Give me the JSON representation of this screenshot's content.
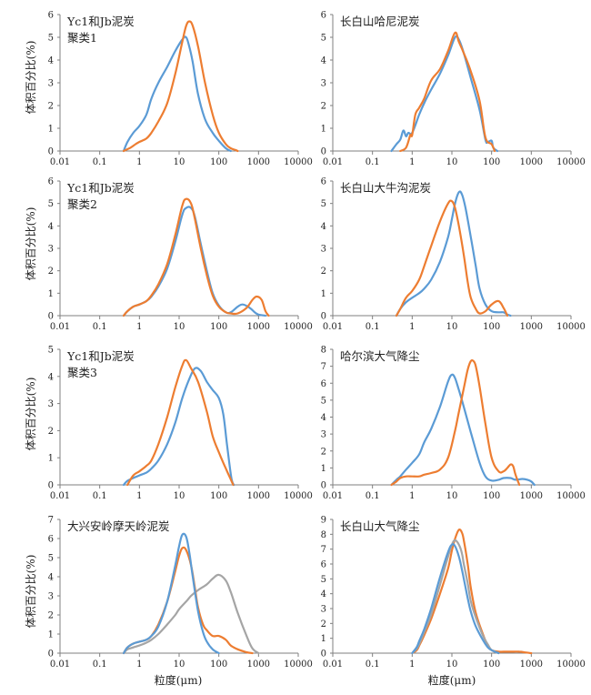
{
  "y_axis_label": "体积百分比(%)",
  "x_axis_label": "粒度(μm)",
  "colors": {
    "blue": "#5b9bd5",
    "orange": "#ed7d31",
    "gray": "#a5a5a5",
    "axis": "#7f7f7f"
  },
  "chart_data": [
    {
      "type": "line",
      "title": [
        "Yc1和Jb泥炭",
        "聚类1"
      ],
      "x_scale": "log",
      "x_ticks": [
        "0.01",
        "0.1",
        "1",
        "10",
        "100",
        "1000",
        "10000"
      ],
      "y_ticks": [
        "0",
        "1",
        "2",
        "3",
        "4",
        "5",
        "6"
      ],
      "xlim": [
        0.01,
        10000
      ],
      "ylim": [
        0,
        6
      ],
      "series": [
        {
          "color": "blue",
          "x": [
            0.4,
            0.5,
            0.7,
            1,
            1.5,
            2,
            3,
            5,
            8,
            12,
            15,
            18,
            22,
            30,
            45,
            70,
            100,
            150,
            200
          ],
          "y": [
            0,
            0.4,
            0.8,
            1.1,
            1.6,
            2.3,
            3.0,
            3.7,
            4.4,
            4.9,
            5.0,
            4.6,
            3.9,
            2.5,
            1.4,
            0.8,
            0.45,
            0.12,
            0
          ]
        },
        {
          "color": "orange",
          "x": [
            0.4,
            0.6,
            0.8,
            1,
            1.5,
            2,
            3,
            5,
            8,
            12,
            15,
            18,
            22,
            30,
            45,
            70,
            100,
            150,
            200,
            260,
            300
          ],
          "y": [
            0,
            0.15,
            0.3,
            0.4,
            0.55,
            0.8,
            1.3,
            2.1,
            3.4,
            4.8,
            5.5,
            5.7,
            5.5,
            4.6,
            3.0,
            1.6,
            0.8,
            0.3,
            0.12,
            0.05,
            0
          ]
        }
      ]
    },
    {
      "type": "line",
      "title": [
        "长白山哈尼泥炭"
      ],
      "x_scale": "log",
      "x_ticks": [
        "0.01",
        "0.1",
        "1",
        "10",
        "100",
        "1000",
        "10000"
      ],
      "y_ticks": [
        "0",
        "1",
        "2",
        "3",
        "4",
        "5",
        "6"
      ],
      "xlim": [
        0.01,
        10000
      ],
      "ylim": [
        0,
        6
      ],
      "series": [
        {
          "color": "blue",
          "x": [
            0.3,
            0.4,
            0.5,
            0.6,
            0.7,
            0.8,
            1,
            1.5,
            2,
            3,
            5,
            8,
            12,
            15,
            20,
            30,
            50,
            70,
            80,
            100,
            110,
            140
          ],
          "y": [
            0,
            0.3,
            0.5,
            0.9,
            0.65,
            0.8,
            0.8,
            1.6,
            2.1,
            2.7,
            3.4,
            4.2,
            5.0,
            4.9,
            4.3,
            3.2,
            1.8,
            0.5,
            0.4,
            0.45,
            0.15,
            0
          ]
        },
        {
          "color": "orange",
          "x": [
            0.5,
            0.7,
            0.9,
            1,
            1.2,
            1.5,
            2,
            3,
            5,
            8,
            12,
            15,
            20,
            30,
            50,
            70,
            100,
            120
          ],
          "y": [
            0,
            0.15,
            0.7,
            0.7,
            1.6,
            1.9,
            2.3,
            3.1,
            3.6,
            4.4,
            5.2,
            4.8,
            4.3,
            3.5,
            2.2,
            0.6,
            0.3,
            0
          ]
        }
      ]
    },
    {
      "type": "line",
      "title": [
        "Yc1和Jb泥炭",
        "聚类2"
      ],
      "x_scale": "log",
      "x_ticks": [
        "0.01",
        "0.1",
        "1",
        "10",
        "100",
        "1000",
        "10000"
      ],
      "y_ticks": [
        "0",
        "1",
        "2",
        "3",
        "4",
        "5",
        "6"
      ],
      "xlim": [
        0.01,
        10000
      ],
      "ylim": [
        0,
        6
      ],
      "series": [
        {
          "color": "blue",
          "x": [
            0.4,
            0.5,
            0.7,
            1,
            1.5,
            2,
            3,
            5,
            8,
            12,
            15,
            20,
            25,
            35,
            50,
            70,
            100,
            150,
            200,
            300,
            400,
            600,
            800,
            1000,
            1500
          ],
          "y": [
            0,
            0.2,
            0.4,
            0.5,
            0.65,
            0.85,
            1.3,
            2.1,
            3.3,
            4.5,
            4.8,
            4.8,
            4.4,
            3.2,
            2.0,
            1.0,
            0.45,
            0.15,
            0.15,
            0.4,
            0.5,
            0.35,
            0.15,
            0.05,
            0
          ]
        },
        {
          "color": "orange",
          "x": [
            0.4,
            0.5,
            0.7,
            1,
            1.5,
            2,
            3,
            5,
            8,
            12,
            15,
            20,
            25,
            35,
            50,
            70,
            100,
            150,
            200,
            300,
            500,
            700,
            900,
            1200,
            1500,
            1800
          ],
          "y": [
            0,
            0.2,
            0.4,
            0.5,
            0.65,
            0.9,
            1.4,
            2.3,
            3.6,
            4.9,
            5.2,
            5.0,
            4.3,
            3.0,
            1.8,
            0.9,
            0.4,
            0.15,
            0.1,
            0.1,
            0.35,
            0.7,
            0.85,
            0.7,
            0.2,
            0
          ]
        }
      ]
    },
    {
      "type": "line",
      "title": [
        "长白山大牛沟泥炭"
      ],
      "x_scale": "log",
      "x_ticks": [
        "0.01",
        "0.1",
        "1",
        "10",
        "100",
        "1000",
        "10000"
      ],
      "y_ticks": [
        "0",
        "1",
        "2",
        "3",
        "4",
        "5",
        "6"
      ],
      "xlim": [
        0.01,
        10000
      ],
      "ylim": [
        0,
        6
      ],
      "series": [
        {
          "color": "blue",
          "x": [
            0.4,
            0.5,
            0.7,
            1,
            1.5,
            2,
            3,
            5,
            8,
            10,
            12,
            15,
            18,
            22,
            30,
            40,
            50,
            70,
            100,
            150,
            200,
            250,
            300
          ],
          "y": [
            0,
            0.3,
            0.6,
            0.8,
            1.0,
            1.2,
            1.6,
            2.4,
            3.5,
            4.3,
            5.0,
            5.5,
            5.4,
            4.8,
            3.5,
            2.2,
            1.2,
            0.5,
            0.2,
            0.15,
            0.15,
            0.05,
            0
          ]
        },
        {
          "color": "orange",
          "x": [
            0.4,
            0.5,
            0.7,
            1,
            1.5,
            2,
            3,
            5,
            8,
            10,
            12,
            15,
            20,
            25,
            30,
            40,
            50,
            70,
            100,
            150,
            200,
            250
          ],
          "y": [
            0,
            0.3,
            0.8,
            1.1,
            1.6,
            2.2,
            3.1,
            4.2,
            5.0,
            5.1,
            4.8,
            4.0,
            2.7,
            1.5,
            0.8,
            0.3,
            0.1,
            0.2,
            0.5,
            0.65,
            0.35,
            0
          ]
        }
      ]
    },
    {
      "type": "line",
      "title": [
        "Yc1和Jb泥炭",
        "聚类3"
      ],
      "x_scale": "log",
      "x_ticks": [
        "0.01",
        "0.1",
        "1",
        "10",
        "100",
        "1000",
        "10000"
      ],
      "y_ticks": [
        "0",
        "1",
        "2",
        "3",
        "4",
        "5"
      ],
      "xlim": [
        0.01,
        10000
      ],
      "ylim": [
        0,
        5
      ],
      "series": [
        {
          "color": "blue",
          "x": [
            0.4,
            0.5,
            0.7,
            1,
            1.5,
            2,
            3,
            5,
            8,
            12,
            18,
            25,
            35,
            50,
            70,
            100,
            130,
            160,
            200,
            220,
            240
          ],
          "y": [
            0,
            0.15,
            0.25,
            0.35,
            0.45,
            0.6,
            0.9,
            1.5,
            2.3,
            3.2,
            3.9,
            4.3,
            4.2,
            3.8,
            3.5,
            3.2,
            2.6,
            1.5,
            0.4,
            0.1,
            0
          ]
        },
        {
          "color": "orange",
          "x": [
            0.5,
            0.7,
            1,
            1.5,
            2,
            3,
            5,
            8,
            12,
            15,
            20,
            30,
            50,
            70,
            100,
            150,
            200,
            230
          ],
          "y": [
            0,
            0.35,
            0.5,
            0.7,
            0.9,
            1.5,
            2.5,
            3.6,
            4.4,
            4.6,
            4.3,
            3.8,
            2.7,
            1.8,
            1.2,
            0.6,
            0.2,
            0
          ]
        }
      ]
    },
    {
      "type": "line",
      "title": [
        "哈尔滨大气降尘"
      ],
      "x_scale": "log",
      "x_ticks": [
        "0.01",
        "0.1",
        "1",
        "10",
        "100",
        "1000",
        "10000"
      ],
      "y_ticks": [
        "0",
        "1",
        "2",
        "3",
        "4",
        "5",
        "6",
        "7",
        "8"
      ],
      "xlim": [
        0.01,
        10000
      ],
      "ylim": [
        0,
        8
      ],
      "series": [
        {
          "color": "blue",
          "x": [
            0.3,
            0.4,
            0.5,
            0.7,
            1,
            1.5,
            2,
            3,
            5,
            8,
            10,
            12,
            15,
            20,
            30,
            50,
            70,
            100,
            150,
            200,
            300,
            400,
            600,
            800,
            1000,
            1200
          ],
          "y": [
            0,
            0.3,
            0.5,
            0.9,
            1.3,
            1.8,
            2.5,
            3.3,
            4.6,
            6.1,
            6.5,
            6.3,
            5.6,
            4.6,
            3.1,
            1.3,
            0.5,
            0.25,
            0.3,
            0.4,
            0.4,
            0.3,
            0.35,
            0.3,
            0.2,
            0
          ]
        },
        {
          "color": "orange",
          "x": [
            0.3,
            0.4,
            0.5,
            0.7,
            1,
            1.5,
            2,
            3,
            5,
            8,
            12,
            15,
            20,
            25,
            30,
            35,
            40,
            50,
            70,
            100,
            150,
            200,
            250,
            300,
            350,
            400,
            500
          ],
          "y": [
            0,
            0.2,
            0.4,
            0.5,
            0.5,
            0.5,
            0.6,
            0.7,
            0.9,
            1.6,
            3.2,
            4.3,
            5.7,
            6.8,
            7.3,
            7.3,
            7.0,
            5.8,
            3.6,
            1.6,
            0.8,
            0.8,
            1.0,
            1.2,
            1.1,
            0.6,
            0
          ]
        }
      ]
    },
    {
      "type": "line",
      "title": [
        "大兴安岭摩天岭泥炭"
      ],
      "x_scale": "log",
      "x_ticks": [
        "0.01",
        "0.1",
        "1",
        "10",
        "100",
        "1000",
        "10000"
      ],
      "y_ticks": [
        "0",
        "1",
        "2",
        "3",
        "4",
        "5",
        "6",
        "7"
      ],
      "xlim": [
        0.01,
        10000
      ],
      "ylim": [
        0,
        7
      ],
      "series": [
        {
          "color": "gray",
          "x": [
            0.4,
            0.5,
            0.7,
            1,
            1.5,
            2,
            3,
            5,
            8,
            10,
            15,
            20,
            30,
            50,
            70,
            100,
            150,
            200,
            300,
            500,
            700,
            1000
          ],
          "y": [
            0,
            0.2,
            0.3,
            0.4,
            0.55,
            0.7,
            1.0,
            1.5,
            2.0,
            2.3,
            2.7,
            3.0,
            3.3,
            3.6,
            3.9,
            4.1,
            3.8,
            3.2,
            2.1,
            0.9,
            0.25,
            0
          ]
        },
        {
          "color": "orange",
          "x": [
            0.4,
            0.5,
            0.7,
            1,
            1.5,
            2,
            3,
            5,
            8,
            10,
            12,
            15,
            20,
            25,
            30,
            40,
            50,
            70,
            100,
            150,
            200,
            300,
            500,
            700
          ],
          "y": [
            0,
            0.3,
            0.5,
            0.6,
            0.7,
            0.9,
            1.5,
            2.7,
            4.3,
            5.1,
            5.5,
            5.4,
            4.6,
            3.4,
            2.4,
            1.5,
            1.2,
            0.9,
            0.9,
            0.7,
            0.4,
            0.2,
            0.05,
            0
          ]
        },
        {
          "color": "blue",
          "x": [
            0.4,
            0.5,
            0.7,
            1,
            1.5,
            2,
            3,
            5,
            8,
            10,
            12,
            15,
            18,
            22,
            30,
            40,
            50,
            70,
            100
          ],
          "y": [
            0,
            0.3,
            0.5,
            0.6,
            0.7,
            0.9,
            1.4,
            2.7,
            4.6,
            5.6,
            6.2,
            6.1,
            5.3,
            4.0,
            2.2,
            1.1,
            0.6,
            0.2,
            0
          ]
        }
      ]
    },
    {
      "type": "line",
      "title": [
        "长白山大气降尘"
      ],
      "x_scale": "log",
      "x_ticks": [
        "0.01",
        "0.1",
        "1",
        "10",
        "100",
        "1000",
        "10000"
      ],
      "y_ticks": [
        "0",
        "1",
        "2",
        "3",
        "4",
        "5",
        "6",
        "7",
        "8",
        "9"
      ],
      "xlim": [
        0.01,
        10000
      ],
      "ylim": [
        0,
        9
      ],
      "series": [
        {
          "color": "orange",
          "x": [
            1,
            1.3,
            1.5,
            2,
            3,
            5,
            8,
            10,
            12,
            15,
            18,
            20,
            25,
            30,
            40,
            60,
            80,
            100,
            150,
            200,
            300,
            500,
            700,
            1000
          ],
          "y": [
            0,
            0.2,
            0.5,
            1.2,
            2.3,
            4.0,
            5.7,
            6.9,
            7.7,
            8.3,
            8.1,
            7.6,
            6.0,
            4.4,
            2.7,
            1.3,
            0.5,
            0.2,
            0.1,
            0.1,
            0.1,
            0.1,
            0.05,
            0
          ]
        },
        {
          "color": "gray",
          "x": [
            1,
            1.3,
            1.5,
            2,
            3,
            5,
            8,
            10,
            12,
            15,
            18,
            20,
            25,
            30,
            40,
            60,
            80,
            100,
            150
          ],
          "y": [
            0,
            0.3,
            0.6,
            1.4,
            2.6,
            4.6,
            6.5,
            7.3,
            7.6,
            7.3,
            6.7,
            6.0,
            4.7,
            3.5,
            2.4,
            1.2,
            0.6,
            0.2,
            0
          ]
        },
        {
          "color": "blue",
          "x": [
            1,
            1.3,
            1.5,
            2,
            3,
            5,
            8,
            10,
            12,
            15,
            18,
            20,
            25,
            30,
            40,
            60,
            80,
            100,
            150
          ],
          "y": [
            0,
            0.4,
            0.8,
            1.6,
            3.0,
            5.1,
            6.8,
            7.3,
            7.2,
            6.5,
            5.6,
            5.0,
            3.7,
            2.8,
            1.8,
            0.9,
            0.4,
            0.2,
            0
          ]
        }
      ]
    }
  ]
}
